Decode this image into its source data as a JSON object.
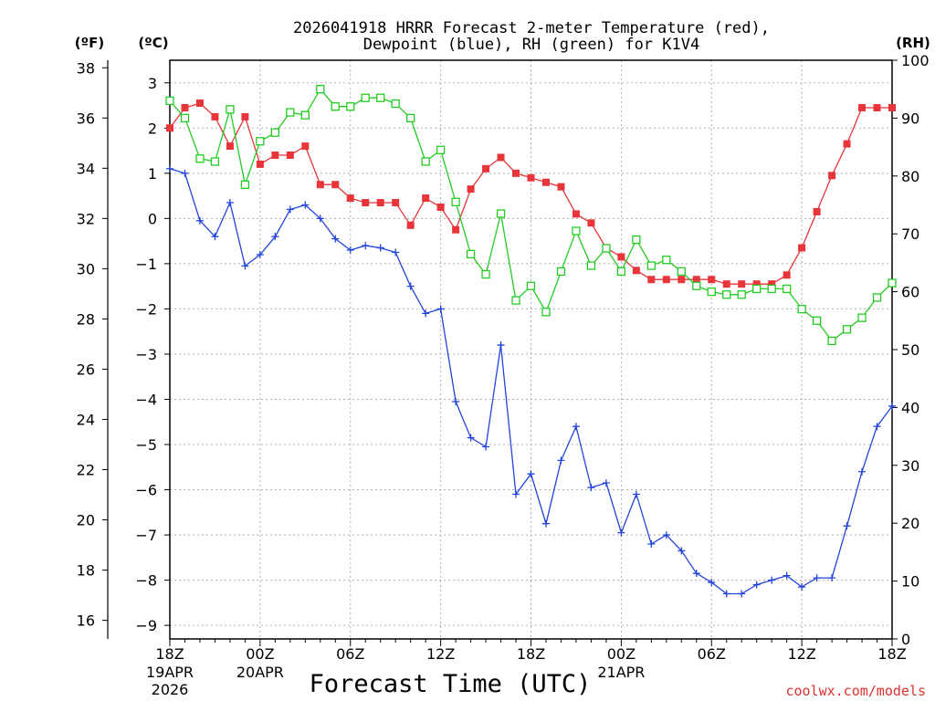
{
  "chart_data": {
    "type": "line",
    "title": [
      "2026041918 HRRR Forecast 2-meter Temperature (red),",
      "Dewpoint (blue), RH (green) for K1V4"
    ],
    "xlabel": "Forecast Time (UTC)",
    "credit": "coolwx.com/models",
    "units": {
      "fahrenheit": "(ºF)",
      "celsius": "(ºC)",
      "rh": "(RH)"
    },
    "x_hours": [
      0,
      1,
      2,
      3,
      4,
      5,
      6,
      7,
      8,
      9,
      10,
      11,
      12,
      13,
      14,
      15,
      16,
      17,
      18,
      19,
      20,
      21,
      22,
      23,
      24,
      25,
      26,
      27,
      28,
      29,
      30,
      31,
      32,
      33,
      34,
      35,
      36,
      37,
      38,
      39,
      40,
      41,
      42,
      43,
      44,
      45,
      46,
      47,
      48
    ],
    "xlim": [
      0,
      48
    ],
    "x_ticks": [
      {
        "h": 0,
        "label": "18Z",
        "sub1": "19APR",
        "sub2": "2026"
      },
      {
        "h": 6,
        "label": "00Z",
        "sub1": "20APR",
        "sub2": ""
      },
      {
        "h": 12,
        "label": "06Z",
        "sub1": "",
        "sub2": ""
      },
      {
        "h": 18,
        "label": "12Z",
        "sub1": "",
        "sub2": ""
      },
      {
        "h": 24,
        "label": "18Z",
        "sub1": "",
        "sub2": ""
      },
      {
        "h": 30,
        "label": "00Z",
        "sub1": "21APR",
        "sub2": ""
      },
      {
        "h": 36,
        "label": "06Z",
        "sub1": "",
        "sub2": ""
      },
      {
        "h": 42,
        "label": "12Z",
        "sub1": "",
        "sub2": ""
      },
      {
        "h": 48,
        "label": "18Z",
        "sub1": "",
        "sub2": ""
      }
    ],
    "celsius_axis": {
      "range": [
        -9.3,
        3.5
      ],
      "ticks": [
        3,
        2,
        1,
        0,
        -1,
        -2,
        -3,
        -4,
        -5,
        -6,
        -7,
        -8,
        -9
      ],
      "labels": [
        "3",
        "2",
        "1",
        "0",
        "−1",
        "−2",
        "−3",
        "−4",
        "−5",
        "−6",
        "−7",
        "−8",
        "−9"
      ]
    },
    "fahrenheit_axis": {
      "ticks": [
        38,
        36,
        34,
        32,
        30,
        28,
        26,
        24,
        22,
        20,
        18,
        16
      ],
      "labels": [
        "38",
        "36",
        "34",
        "32",
        "30",
        "28",
        "26",
        "24",
        "22",
        "20",
        "18",
        "16"
      ]
    },
    "rh_axis": {
      "range": [
        0,
        100
      ],
      "ticks": [
        100,
        90,
        80,
        70,
        60,
        50,
        40,
        30,
        20,
        10,
        0
      ],
      "labels": [
        "100",
        "90",
        "80",
        "70",
        "60",
        "50",
        "40",
        "30",
        "20",
        "10",
        "0"
      ]
    },
    "series": [
      {
        "name": "Temperature",
        "axis": "celsius",
        "color": "#e8353a",
        "marker": "filled-square",
        "values": [
          2.0,
          2.45,
          2.55,
          2.25,
          1.6,
          2.25,
          1.2,
          1.4,
          1.4,
          1.6,
          0.75,
          0.75,
          0.45,
          0.35,
          0.35,
          0.35,
          -0.15,
          0.45,
          0.25,
          -0.25,
          0.65,
          1.1,
          1.35,
          1.0,
          0.9,
          0.8,
          0.7,
          0.1,
          -0.1,
          -0.65,
          -0.85,
          -1.15,
          -1.35,
          -1.35,
          -1.35,
          -1.35,
          -1.35,
          -1.45,
          -1.45,
          -1.45,
          -1.45,
          -1.25,
          -0.65,
          0.15,
          0.95,
          1.65,
          2.45,
          2.45,
          2.45
        ]
      },
      {
        "name": "Dewpoint",
        "axis": "celsius",
        "color": "#2244dd",
        "marker": "plus",
        "values": [
          1.1,
          1.0,
          -0.05,
          -0.4,
          0.35,
          -1.05,
          -0.8,
          -0.4,
          0.2,
          0.3,
          0.0,
          -0.45,
          -0.7,
          -0.6,
          -0.65,
          -0.75,
          -1.5,
          -2.1,
          -2.0,
          -4.05,
          -4.85,
          -5.05,
          -2.8,
          -6.1,
          -5.65,
          -6.75,
          -5.35,
          -4.6,
          -5.95,
          -5.85,
          -6.95,
          -6.1,
          -7.2,
          -7.0,
          -7.35,
          -7.85,
          -8.05,
          -8.3,
          -8.3,
          -8.1,
          -8.0,
          -7.9,
          -8.15,
          -7.95,
          -7.95,
          -6.8,
          -5.6,
          -4.6,
          -4.15
        ]
      },
      {
        "name": "RH",
        "axis": "rh",
        "color": "#22cc22",
        "marker": "open-square",
        "values": [
          93,
          90,
          83,
          82.5,
          91.5,
          78.5,
          86,
          87.5,
          91,
          90.5,
          95,
          92,
          92,
          93.5,
          93.5,
          92.5,
          90,
          82.5,
          84.5,
          75.5,
          66.5,
          63,
          73.5,
          58.5,
          61,
          56.5,
          63.5,
          70.5,
          64.5,
          67.5,
          63.5,
          69,
          64.5,
          65.5,
          63.5,
          61,
          60,
          59.5,
          59.5,
          60.5,
          60.5,
          60.5,
          57,
          55,
          51.5,
          53.5,
          55.5,
          59,
          61.5
        ]
      }
    ]
  }
}
